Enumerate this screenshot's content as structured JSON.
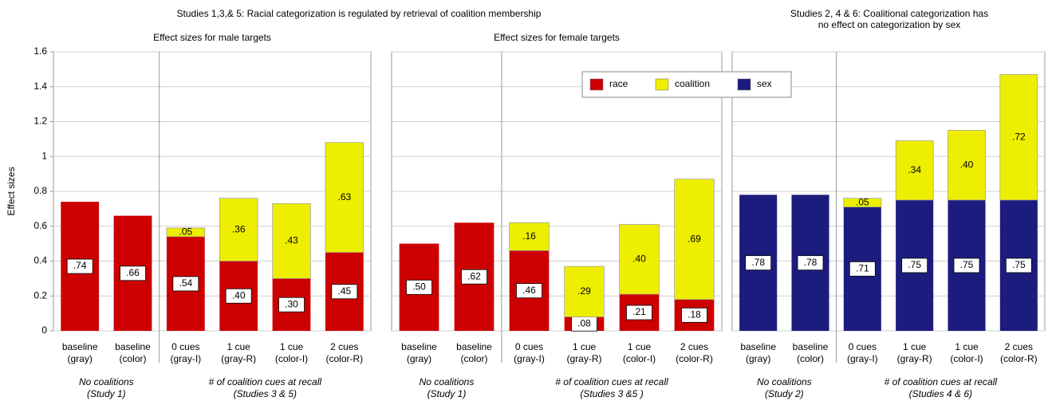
{
  "suptitles": [
    [
      "Studies 1,3,& 5: Racial categorization is regulated by retrieval of coalition membership"
    ],
    [
      "Studies 2, 4 & 6: Coalitional categorization has",
      "no effect on categorization by sex"
    ]
  ],
  "chart_data": [
    {
      "type": "bar",
      "stacked": true,
      "title": "Effect sizes for male targets",
      "ylabel": "Effect sizes",
      "categories": [
        [
          "baseline",
          "(gray)"
        ],
        [
          "baseline",
          "(color)"
        ],
        [
          "0 cues",
          "(gray-I)"
        ],
        [
          "1 cue",
          "(gray-R)"
        ],
        [
          "1 cue",
          "(color-I)"
        ],
        [
          "2 cues",
          "(color-R)"
        ]
      ],
      "group_labels": [
        [
          "No coalitions",
          "(Study 1)"
        ],
        [
          "# of coalition cues at recall",
          "(Studies 3 & 5)"
        ]
      ],
      "series": [
        {
          "name": "race",
          "color": "#cc0000",
          "values": [
            0.74,
            0.66,
            0.54,
            0.4,
            0.3,
            0.45
          ],
          "value_labels": [
            ".74",
            ".66",
            ".54",
            ".40",
            ".30",
            ".45"
          ]
        },
        {
          "name": "coalition",
          "color": "#eeee00",
          "values": [
            null,
            null,
            0.05,
            0.36,
            0.43,
            0.63
          ],
          "value_labels": [
            null,
            null,
            ".05",
            ".36",
            ".43",
            ".63"
          ]
        }
      ],
      "ylim": [
        0,
        1.6
      ],
      "yticks": [
        0,
        0.2,
        0.4,
        0.6,
        0.8,
        1,
        1.2,
        1.4,
        1.6
      ],
      "grid": true
    },
    {
      "type": "bar",
      "stacked": true,
      "title": "Effect sizes for female targets",
      "categories": [
        [
          "baseline",
          "(gray)"
        ],
        [
          "baseline",
          "(color)"
        ],
        [
          "0 cues",
          "(gray-I)"
        ],
        [
          "1 cue",
          "(gray-R)"
        ],
        [
          "1 cue",
          "(color-I)"
        ],
        [
          "2 cues",
          "(color-R)"
        ]
      ],
      "group_labels": [
        [
          "No coalitions",
          "(Study 1)"
        ],
        [
          "# of coalition cues at recall",
          "(Studies 3 &5 )"
        ]
      ],
      "series": [
        {
          "name": "race",
          "color": "#cc0000",
          "values": [
            0.5,
            0.62,
            0.46,
            0.08,
            0.21,
            0.18
          ],
          "value_labels": [
            ".50",
            ".62",
            ".46",
            ".08",
            ".21",
            ".18"
          ]
        },
        {
          "name": "coalition",
          "color": "#eeee00",
          "values": [
            null,
            null,
            0.16,
            0.29,
            0.4,
            0.69
          ],
          "value_labels": [
            null,
            null,
            ".16",
            ".29",
            ".40",
            ".69"
          ]
        }
      ],
      "ylim": [
        0,
        1.6
      ],
      "yticks": [
        0,
        0.2,
        0.4,
        0.6,
        0.8,
        1,
        1.2,
        1.4,
        1.6
      ],
      "grid": true
    },
    {
      "type": "bar",
      "stacked": true,
      "categories": [
        [
          "baseline",
          "(gray)"
        ],
        [
          "baseline",
          "(color)"
        ],
        [
          "0 cues",
          "(gray-I)"
        ],
        [
          "1 cue",
          "(gray-R)"
        ],
        [
          "1 cue",
          "(color-I)"
        ],
        [
          "2 cues",
          "(color-R)"
        ]
      ],
      "group_labels": [
        [
          "No coalitions",
          "(Study 2)"
        ],
        [
          "# of coalition cues at recall",
          "(Studies 4 & 6)"
        ]
      ],
      "series": [
        {
          "name": "sex",
          "color": "#1c1c7e",
          "values": [
            0.78,
            0.78,
            0.71,
            0.75,
            0.75,
            0.75
          ],
          "value_labels": [
            ".78",
            ".78",
            ".71",
            ".75",
            ".75",
            ".75"
          ]
        },
        {
          "name": "coalition",
          "color": "#eeee00",
          "values": [
            null,
            null,
            0.05,
            0.34,
            0.4,
            0.72
          ],
          "value_labels": [
            null,
            null,
            ".05",
            ".34",
            ".40",
            ".72"
          ]
        }
      ],
      "ylim": [
        0,
        1.6
      ],
      "yticks": [
        0,
        0.2,
        0.4,
        0.6,
        0.8,
        1,
        1.2,
        1.4,
        1.6
      ],
      "grid": true
    }
  ]
}
